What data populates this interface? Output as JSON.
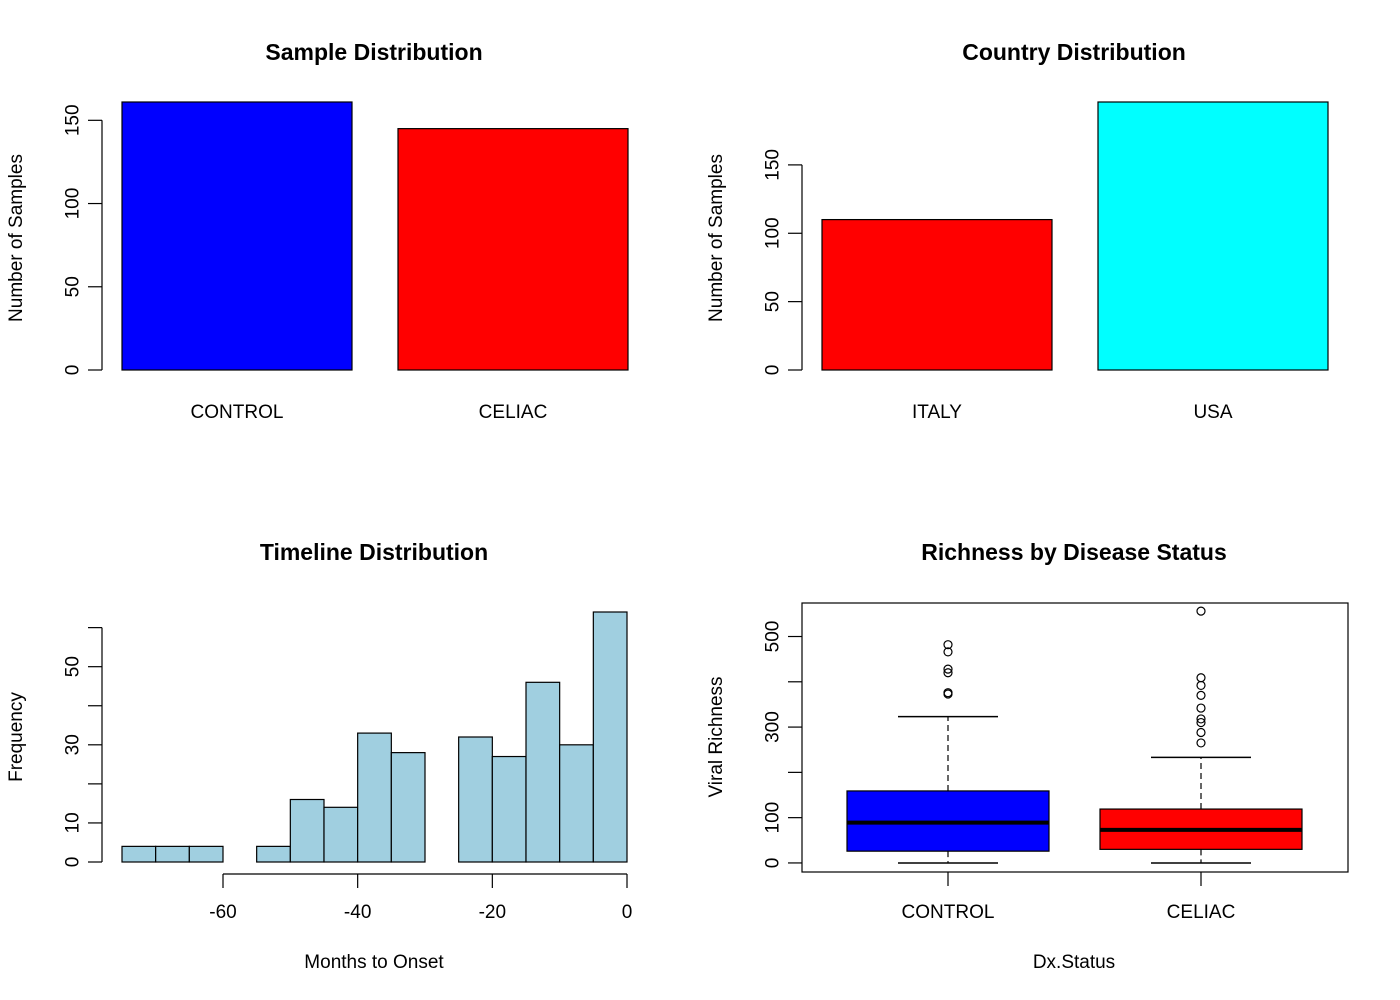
{
  "chart_data": [
    {
      "type": "bar",
      "title": "Sample Distribution",
      "xlabel": "",
      "ylabel": "Number of Samples",
      "categories": [
        "CONTROL",
        "CELIAC"
      ],
      "values": [
        161,
        145
      ],
      "colors": [
        "#0000ff",
        "#ff0000"
      ],
      "ylim": [
        0,
        161
      ],
      "yticks": [
        "0",
        "50",
        "100",
        "150"
      ],
      "grid": false
    },
    {
      "type": "bar",
      "title": "Country Distribution",
      "xlabel": "",
      "ylabel": "Number of Samples",
      "categories": [
        "ITALY",
        "USA"
      ],
      "values": [
        110,
        196
      ],
      "colors": [
        "#ff0000",
        "#00ffff"
      ],
      "ylim": [
        0,
        196
      ],
      "yticks": [
        "0",
        "50",
        "100",
        "150"
      ],
      "grid": false
    },
    {
      "type": "histogram",
      "title": "Timeline Distribution",
      "xlabel": "Months to Onset",
      "ylabel": "Frequency",
      "bins": [
        {
          "x0": -75,
          "x1": -70,
          "count": 4
        },
        {
          "x0": -70,
          "x1": -65,
          "count": 4
        },
        {
          "x0": -65,
          "x1": -60,
          "count": 4
        },
        {
          "x0": -60,
          "x1": -55,
          "count": 0
        },
        {
          "x0": -55,
          "x1": -50,
          "count": 4
        },
        {
          "x0": -50,
          "x1": -45,
          "count": 16
        },
        {
          "x0": -45,
          "x1": -40,
          "count": 14
        },
        {
          "x0": -40,
          "x1": -35,
          "count": 33
        },
        {
          "x0": -35,
          "x1": -30,
          "count": 28
        },
        {
          "x0": -30,
          "x1": -25,
          "count": 0
        },
        {
          "x0": -25,
          "x1": -20,
          "count": 32
        },
        {
          "x0": -20,
          "x1": -15,
          "count": 27
        },
        {
          "x0": -15,
          "x1": -10,
          "count": 46
        },
        {
          "x0": -10,
          "x1": -5,
          "count": 30
        },
        {
          "x0": -5,
          "x1": 0,
          "count": 64
        }
      ],
      "color": "#a0cfe0",
      "xlim": [
        -75,
        0
      ],
      "ylim": [
        0,
        64
      ],
      "xticks": [
        "-60",
        "-40",
        "-20",
        "0"
      ],
      "yticks": [
        "0",
        "10",
        "30",
        "50"
      ],
      "grid": false
    },
    {
      "type": "boxplot",
      "title": "Richness by Disease Status",
      "xlabel": "Dx.Status",
      "ylabel": "Viral Richness",
      "categories": [
        "CONTROL",
        "CELIAC"
      ],
      "colors": [
        "#0000ff",
        "#ff0000"
      ],
      "boxes": [
        {
          "min": 0,
          "q1": 26,
          "median": 89,
          "q3": 159,
          "whisker_high": 323,
          "outliers": [
            373,
            376,
            420,
            428,
            466,
            482
          ]
        },
        {
          "min": 0,
          "q1": 30,
          "median": 73,
          "q3": 119,
          "whisker_high": 233,
          "outliers": [
            265,
            288,
            310,
            318,
            342,
            370,
            392,
            409,
            556
          ]
        }
      ],
      "ylim": [
        -20,
        574
      ],
      "yticks": [
        "0",
        "100",
        "300",
        "500"
      ],
      "grid": false
    }
  ]
}
